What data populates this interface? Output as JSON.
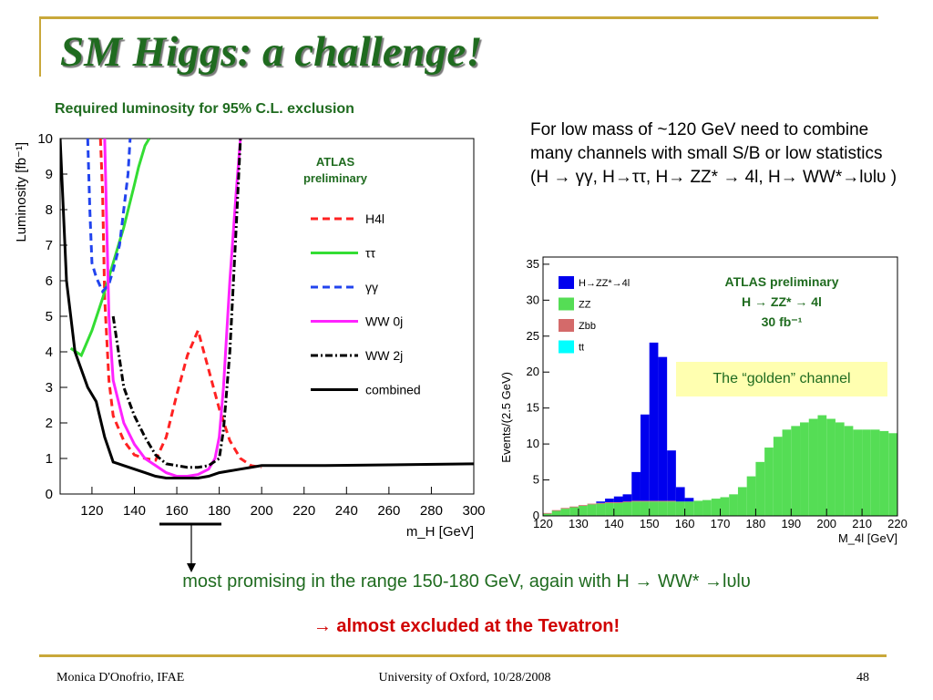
{
  "slide": {
    "title": "SM Higgs: a challenge!",
    "subtitle": "Required luminosity for 95% C.L. exclusion",
    "note": "For low mass of ~120 GeV need to combine many channels with small S/B or low statistics (H → γγ, H→ττ, H→ ZZ* → 4l, H→ WW*→lυlυ )",
    "bottom_line1": "most promising in the range 150-180 GeV, again with H → WW* →lυlυ",
    "bottom_line2": "→ almost excluded at the Tevatron!",
    "footer": {
      "left": "Monica D'Onofrio, IFAE",
      "center": "University of Oxford, 10/28/2008",
      "right": "48"
    },
    "golden_label": "The “golden” channel"
  },
  "chart_data": [
    {
      "type": "line",
      "title": "",
      "annotation": [
        "ATLAS",
        "preliminary"
      ],
      "xlabel": "m_H [GeV]",
      "ylabel": "Luminosity [fb⁻¹]",
      "xlim": [
        105,
        300
      ],
      "ylim": [
        0,
        10
      ],
      "xticks": [
        120,
        140,
        160,
        180,
        200,
        220,
        240,
        260,
        280,
        300
      ],
      "yticks": [
        0,
        1,
        2,
        3,
        4,
        5,
        6,
        7,
        8,
        9,
        10
      ],
      "legend_position": "right",
      "series": [
        {
          "name": "H4l",
          "color": "#ff2222",
          "dash": "8,5",
          "x": [
            124,
            125,
            126,
            128,
            130,
            135,
            140,
            145,
            150,
            155,
            160,
            165,
            170,
            175,
            180,
            185,
            190,
            195,
            200
          ],
          "y": [
            10,
            8.5,
            5.5,
            3.2,
            2.2,
            1.5,
            1.1,
            1.0,
            0.95,
            1.6,
            2.8,
            3.9,
            4.6,
            3.5,
            2.4,
            1.5,
            1.0,
            0.8,
            0.75
          ]
        },
        {
          "name": "ττ",
          "color": "#33dd33",
          "dash": "",
          "x": [
            110,
            115,
            120,
            125,
            130,
            135,
            140,
            142,
            145,
            147
          ],
          "y": [
            4.1,
            3.9,
            4.6,
            5.5,
            6.5,
            7.5,
            8.7,
            9.2,
            9.8,
            10
          ]
        },
        {
          "name": "γγ",
          "color": "#2244ee",
          "dash": "8,5",
          "x": [
            118,
            119,
            120,
            122,
            125,
            128,
            130,
            133,
            135,
            137,
            138
          ],
          "y": [
            10,
            8,
            6.5,
            6.1,
            5.7,
            5.9,
            6.3,
            7.0,
            8.0,
            9.0,
            10
          ]
        },
        {
          "name": "WW 0j",
          "color": "#ff22ff",
          "dash": "",
          "x": [
            126,
            128,
            130,
            135,
            140,
            145,
            150,
            155,
            160,
            165,
            170,
            175,
            178,
            180,
            182,
            185,
            188,
            190
          ],
          "y": [
            10,
            5.0,
            3.2,
            2.0,
            1.4,
            1.0,
            0.8,
            0.6,
            0.5,
            0.5,
            0.55,
            0.7,
            1.0,
            1.6,
            3.0,
            6.0,
            8.5,
            10
          ]
        },
        {
          "name": "WW 2j",
          "color": "#000000",
          "dash": "8,3,2,3",
          "x": [
            130,
            135,
            140,
            145,
            150,
            155,
            160,
            165,
            170,
            175,
            180,
            182,
            185,
            188,
            190
          ],
          "y": [
            5.0,
            3.0,
            2.2,
            1.6,
            1.1,
            0.85,
            0.8,
            0.75,
            0.75,
            0.8,
            1.0,
            1.8,
            4.0,
            7.5,
            10
          ]
        },
        {
          "name": "combined",
          "color": "#000000",
          "dash": "",
          "x": [
            105,
            108,
            112,
            118,
            122,
            126,
            130,
            135,
            140,
            145,
            150,
            155,
            160,
            165,
            170,
            175,
            180,
            185,
            190,
            195,
            200,
            210,
            230,
            260,
            300
          ],
          "y": [
            10,
            6,
            4,
            3,
            2.6,
            1.6,
            0.9,
            0.8,
            0.7,
            0.6,
            0.5,
            0.45,
            0.45,
            0.45,
            0.45,
            0.5,
            0.6,
            0.65,
            0.7,
            0.75,
            0.8,
            0.8,
            0.8,
            0.82,
            0.85
          ]
        }
      ]
    },
    {
      "type": "bar",
      "title": "",
      "annotation": [
        "ATLAS preliminary",
        "H → ZZ* → 4l",
        "30 fb⁻¹"
      ],
      "xlabel": "M_4l [GeV]",
      "ylabel": "Events/(2.5 GeV)",
      "xlim": [
        120,
        220
      ],
      "ylim": [
        0,
        36
      ],
      "xticks": [
        120,
        130,
        140,
        150,
        160,
        170,
        180,
        190,
        200,
        210,
        220
      ],
      "yticks": [
        0,
        5,
        10,
        15,
        20,
        25,
        30,
        35
      ],
      "bin_width": 2.5,
      "bin_low_edges": [
        120,
        122.5,
        125,
        127.5,
        130,
        132.5,
        135,
        137.5,
        140,
        142.5,
        145,
        147.5,
        150,
        152.5,
        155,
        157.5,
        160,
        162.5,
        165,
        167.5,
        170,
        172.5,
        175,
        177.5,
        180,
        182.5,
        185,
        187.5,
        190,
        192.5,
        195,
        197.5,
        200,
        202.5,
        205,
        207.5,
        210,
        212.5,
        215,
        217.5
      ],
      "stack_order": [
        "ZZ",
        "Zbb",
        "tt",
        "H→ZZ*→4l"
      ],
      "legend_position": "top-left",
      "series": [
        {
          "name": "H→ZZ*→4l",
          "color": "#0000ee",
          "values": [
            0,
            0,
            0,
            0,
            0,
            0,
            0.2,
            0.5,
            0.8,
            1.0,
            4.0,
            12.0,
            22.0,
            20.0,
            7.0,
            2.0,
            0.5,
            0,
            0,
            0,
            0,
            0,
            0,
            0,
            0,
            0,
            0,
            0,
            0,
            0,
            0,
            0,
            0,
            0,
            0,
            0,
            0,
            0,
            0,
            0
          ]
        },
        {
          "name": "ZZ",
          "color": "#55dd55",
          "values": [
            0.3,
            0.7,
            1.0,
            1.2,
            1.4,
            1.6,
            1.7,
            1.8,
            1.8,
            1.9,
            2.0,
            2.0,
            2.0,
            2.0,
            2.0,
            2.0,
            2.0,
            2.1,
            2.2,
            2.4,
            2.6,
            3.0,
            4.0,
            5.5,
            7.5,
            9.5,
            11.0,
            12.0,
            12.5,
            13.0,
            13.5,
            14.0,
            13.5,
            13.0,
            12.5,
            12.0,
            12.0,
            12.0,
            11.8,
            11.5
          ]
        },
        {
          "name": "Zbb",
          "color": "#d46a6a",
          "values": [
            0.1,
            0.1,
            0.1,
            0.1,
            0.1,
            0.1,
            0.1,
            0.1,
            0.1,
            0.1,
            0.1,
            0.1,
            0.1,
            0.1,
            0.1,
            0,
            0,
            0,
            0,
            0,
            0,
            0,
            0,
            0,
            0,
            0,
            0,
            0,
            0,
            0,
            0,
            0,
            0,
            0,
            0,
            0,
            0,
            0,
            0,
            0
          ]
        },
        {
          "name": "tt",
          "color": "#00ffff",
          "values": [
            0,
            0,
            0,
            0,
            0,
            0,
            0,
            0,
            0,
            0,
            0,
            0,
            0,
            0,
            0,
            0,
            0,
            0,
            0,
            0,
            0,
            0,
            0,
            0,
            0,
            0,
            0,
            0,
            0,
            0,
            0,
            0,
            0,
            0,
            0,
            0,
            0,
            0,
            0,
            0
          ]
        }
      ]
    }
  ]
}
